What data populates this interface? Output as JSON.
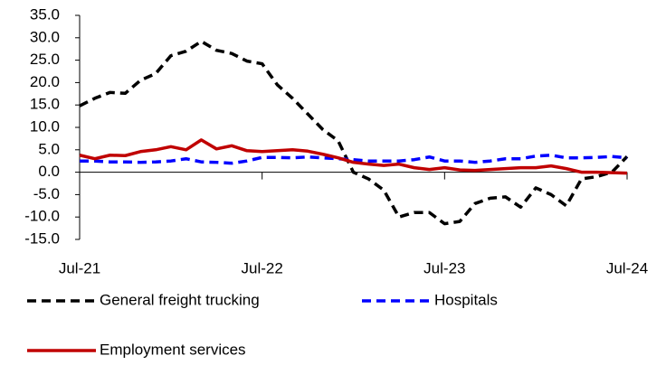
{
  "chart_data": {
    "type": "line",
    "categories": [
      "Jul-21",
      null,
      null,
      null,
      null,
      null,
      null,
      null,
      null,
      null,
      null,
      null,
      "Jul-22",
      null,
      null,
      null,
      null,
      null,
      null,
      null,
      null,
      null,
      null,
      null,
      "Jul-23",
      null,
      null,
      null,
      null,
      null,
      null,
      null,
      null,
      null,
      null,
      null,
      "Jul-24"
    ],
    "series": [
      {
        "name": "General freight trucking",
        "color": "#000000",
        "line_style": "dashed",
        "values": [
          14.8,
          16.5,
          17.8,
          17.6,
          20.5,
          22,
          26,
          27,
          29.2,
          27.2,
          26.5,
          24.8,
          24.2,
          19.5,
          16.5,
          13,
          9.5,
          7,
          0,
          -1.5,
          -4,
          -10,
          -9,
          -9,
          -11.5,
          -11,
          -7,
          -5.8,
          -5.5,
          -7.8,
          -3.5,
          -5,
          -7.5,
          -1.5,
          -1,
          0,
          3.5
        ]
      },
      {
        "name": "Hospitals",
        "color": "#0000ff",
        "line_style": "dashed",
        "values": [
          2.5,
          2.5,
          2.3,
          2.3,
          2.2,
          2.3,
          2.5,
          3,
          2.3,
          2.2,
          2,
          2.5,
          3.3,
          3.3,
          3.2,
          3.4,
          3.2,
          3,
          2.8,
          2.5,
          2.5,
          2.5,
          2.8,
          3.4,
          2.5,
          2.5,
          2.2,
          2.5,
          3,
          3,
          3.6,
          3.8,
          3.2,
          3.2,
          3.3,
          3.5,
          3.2
        ]
      },
      {
        "name": "Employment services",
        "color": "#c00000",
        "line_style": "solid",
        "values": [
          3.8,
          3,
          3.8,
          3.7,
          4.6,
          5,
          5.7,
          5,
          7.2,
          5.2,
          5.9,
          4.8,
          4.6,
          4.8,
          5,
          4.7,
          4,
          3.2,
          2.2,
          1.8,
          1.5,
          1.8,
          1,
          0.6,
          1,
          0.5,
          0.4,
          0.6,
          0.8,
          1,
          1,
          1.4,
          0.8,
          0,
          0,
          -0.1,
          -0.2
        ]
      }
    ],
    "ylim": [
      -15,
      35
    ],
    "yticks": [
      {
        "value": -15,
        "label": "-15.0"
      },
      {
        "value": -10,
        "label": "-10.0"
      },
      {
        "value": -5,
        "label": "-5.0"
      },
      {
        "value": 0,
        "label": "0.0"
      },
      {
        "value": 5,
        "label": "5.0"
      },
      {
        "value": 10,
        "label": "10.0"
      },
      {
        "value": 15,
        "label": "15.0"
      },
      {
        "value": 20,
        "label": "20.0"
      },
      {
        "value": 25,
        "label": "25.0"
      },
      {
        "value": 30,
        "label": "30.0"
      },
      {
        "value": 35,
        "label": "35.0"
      }
    ],
    "grid": false
  }
}
